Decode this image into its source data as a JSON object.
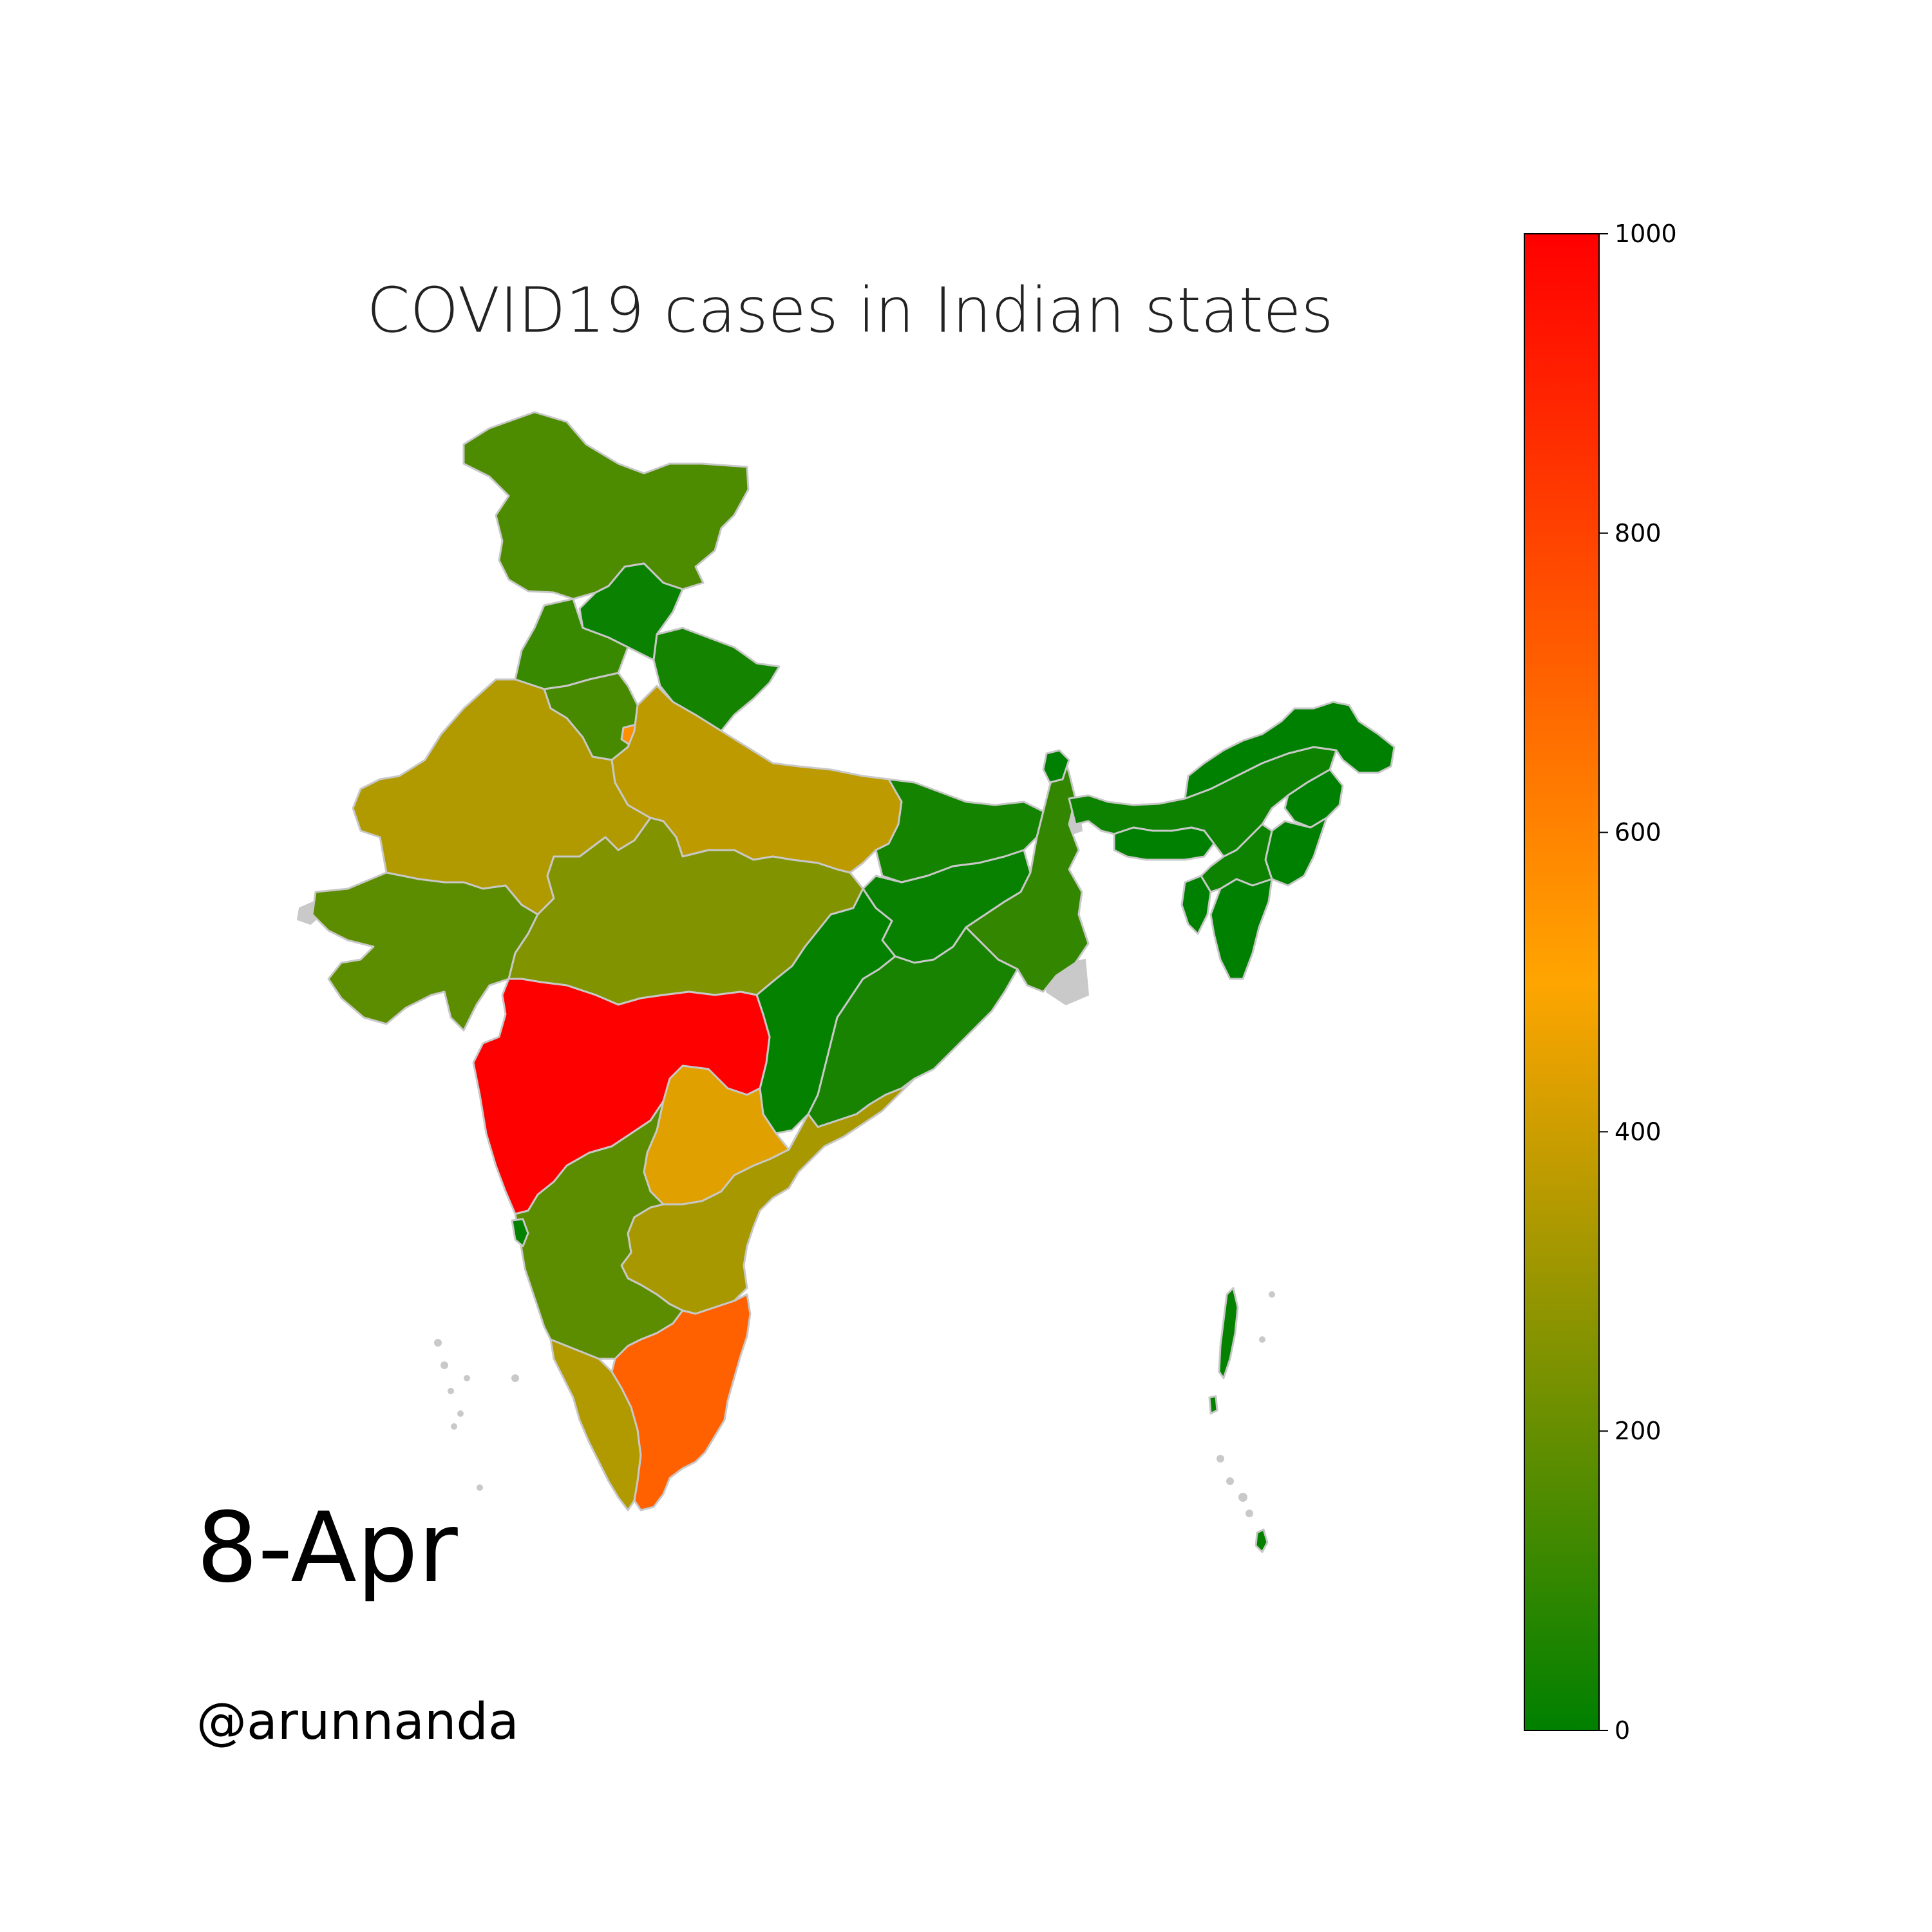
{
  "title": "COVID19 cases in Indian states",
  "date_label": "8-Apr",
  "credit": "@arunnanda",
  "colorbar": {
    "min": 0,
    "max": 1000,
    "ticks": [
      0,
      200,
      400,
      600,
      800,
      1000
    ],
    "stops": [
      {
        "value": 0,
        "color": "#008000"
      },
      {
        "value": 500,
        "color": "#ffa500"
      },
      {
        "value": 1000,
        "color": "#ff0000"
      }
    ]
  },
  "colors": {
    "boundary": "#c8c8c8",
    "unmapped": "#c9c9c9",
    "text": "#000000"
  },
  "regions": [
    {
      "id": "jammu-kashmir",
      "value": 150
    },
    {
      "id": "himachal",
      "value": 20
    },
    {
      "id": "punjab",
      "value": 110
    },
    {
      "id": "uttarakhand",
      "value": 40
    },
    {
      "id": "haryana",
      "value": 140
    },
    {
      "id": "delhi",
      "value": 570
    },
    {
      "id": "rajasthan",
      "value": 345
    },
    {
      "id": "uttar-pradesh",
      "value": 370
    },
    {
      "id": "gujarat",
      "value": 180
    },
    {
      "id": "madhya-pradesh",
      "value": 255
    },
    {
      "id": "bihar",
      "value": 40
    },
    {
      "id": "jharkhand",
      "value": 15
    },
    {
      "id": "west-bengal",
      "value": 100
    },
    {
      "id": "chhattisgarh",
      "value": 10
    },
    {
      "id": "odisha",
      "value": 45
    },
    {
      "id": "maharashtra",
      "value": 1000
    },
    {
      "id": "telangana",
      "value": 440
    },
    {
      "id": "andhra-pradesh",
      "value": 330
    },
    {
      "id": "karnataka",
      "value": 180
    },
    {
      "id": "goa",
      "value": 10
    },
    {
      "id": "kerala",
      "value": 345
    },
    {
      "id": "tamil-nadu",
      "value": 710
    },
    {
      "id": "sikkim",
      "value": 0
    },
    {
      "id": "assam",
      "value": 25
    },
    {
      "id": "arunachal",
      "value": 0
    },
    {
      "id": "nagaland",
      "value": 0
    },
    {
      "id": "meghalaya",
      "value": 0
    },
    {
      "id": "manipur",
      "value": 0
    },
    {
      "id": "mizoram",
      "value": 0
    },
    {
      "id": "tripura",
      "value": 0
    },
    {
      "id": "andaman-nicobar",
      "value": 10
    }
  ]
}
